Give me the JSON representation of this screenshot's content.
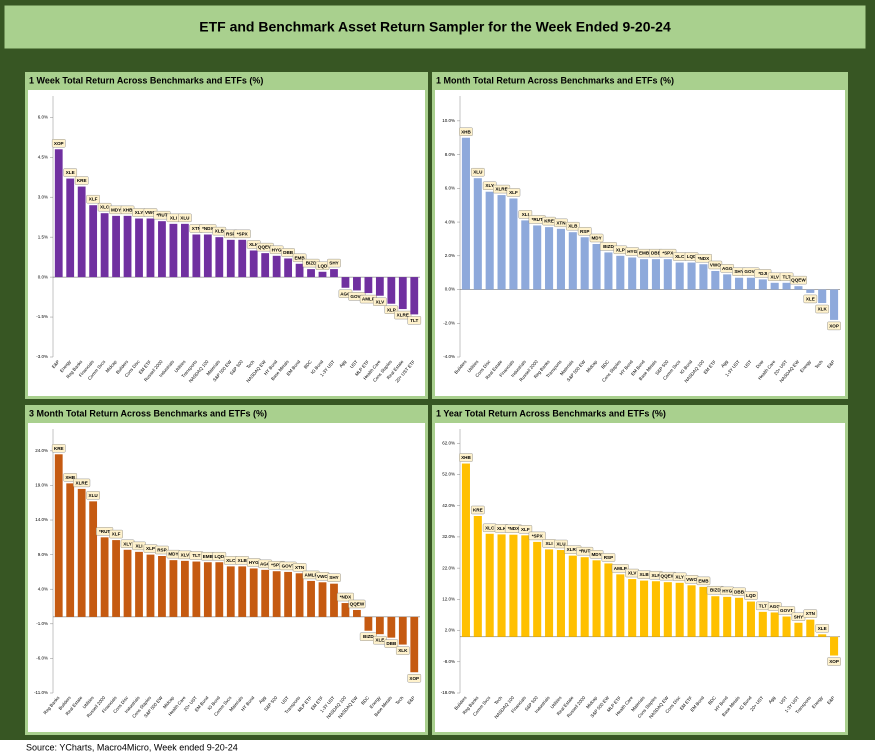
{
  "title": "ETF and Benchmark Asset Return Sampler for the Week Ended 9-20-24",
  "source": "Source: YCharts, Macro4Micro, Week ended 9-20-24",
  "chart_data": [
    {
      "type": "bar",
      "title": "1 Week Total Return Across Benchmarks and ETFs (%)",
      "color": "#7030a0",
      "ylim": [
        -3,
        6.5
      ],
      "yticks": [
        {
          "value": -3,
          "label": "-3.0%"
        },
        {
          "value": -1.5,
          "label": "-1.5%"
        },
        {
          "value": 0,
          "label": "0.0%"
        },
        {
          "value": 1.5,
          "label": "1.5%"
        },
        {
          "value": 3,
          "label": "3.0%"
        },
        {
          "value": 4.5,
          "label": "4.5%"
        },
        {
          "value": 6,
          "label": "6.0%"
        }
      ],
      "labels": [
        "XOP",
        "XLE",
        "KRE",
        "XLF",
        "XLC",
        "MDY",
        "XHB",
        "XLY",
        "VWO",
        "*RUT",
        "XLI",
        "XLU",
        "XTN",
        "*NDX",
        "XLB",
        "RSP",
        "*SPX",
        "XLK",
        "QQEW",
        "HYG",
        "DBB",
        "EMB",
        "BIZD",
        "LQD",
        "SHY",
        "AGG",
        "GOVT",
        "AMLP",
        "XLV",
        "XLP",
        "XLRE",
        "TLT"
      ],
      "categories": [
        "E&P",
        "Energy",
        "Reg Banks",
        "Financials",
        "Comm Svcs",
        "Midcap",
        "Builders",
        "Cons Disc",
        "EM ETF",
        "Russell 2000",
        "Industrials",
        "Utilities",
        "Transports",
        "NASDAQ 100",
        "Materials",
        "S&P 500 EW",
        "S&P 500",
        "Tech",
        "NASDAQ EW",
        "HY Bond",
        "Base Metals",
        "EM Bond",
        "BDC",
        "IG Bond",
        "1-3Y UST",
        "Agg",
        "UST",
        "MLP ETF",
        "Health Care",
        "Cons Staples",
        "Real Estate",
        "20+ UST ETF"
      ],
      "values": [
        4.8,
        3.7,
        3.4,
        2.7,
        2.4,
        2.3,
        2.3,
        2.2,
        2.2,
        2.1,
        2.0,
        2.0,
        1.6,
        1.6,
        1.5,
        1.4,
        1.4,
        1.0,
        0.9,
        0.8,
        0.7,
        0.5,
        0.3,
        0.2,
        0.3,
        -0.4,
        -0.5,
        -0.6,
        -0.7,
        -1.0,
        -1.2,
        -1.4
      ]
    },
    {
      "type": "bar",
      "title": "1 Month Total Return Across Benchmarks and ETFs (%)",
      "color": "#8ea9db",
      "ylim": [
        -4,
        11
      ],
      "yticks": [
        {
          "value": -4,
          "label": "-4.0%"
        },
        {
          "value": -2,
          "label": "-2.0%"
        },
        {
          "value": 0,
          "label": "0.0%"
        },
        {
          "value": 2,
          "label": "2.0%"
        },
        {
          "value": 4,
          "label": "4.0%"
        },
        {
          "value": 6,
          "label": "6.0%"
        },
        {
          "value": 8,
          "label": "8.0%"
        },
        {
          "value": 10,
          "label": "10.0%"
        }
      ],
      "labels": [
        "XHB",
        "XLU",
        "XLY",
        "XLRE",
        "XLF",
        "XLI",
        "*RUT",
        "KRE",
        "XTN",
        "XLB",
        "RSP",
        "MDY",
        "BIZD",
        "XLP",
        "HYG",
        "EMB",
        "DBB",
        "*SPX",
        "XLC",
        "LQD",
        "*NDX",
        "VWO",
        "AGG",
        "SHY",
        "GOVT",
        "*DJI",
        "XLV",
        "TLT",
        "QQEW",
        "XLE",
        "XLK",
        "XOP"
      ],
      "categories": [
        "Builders",
        "Utilities",
        "Cons Disc",
        "Real Estate",
        "Financials",
        "Industrials",
        "Russell 2000",
        "Reg Banks",
        "Transports",
        "Materials",
        "S&P 500 EW",
        "Midcap",
        "BDC",
        "Cons Staples",
        "HY Bond",
        "EM Bond",
        "Base Metals",
        "S&P 500",
        "Comm Svcs",
        "IG Bond",
        "NASDAQ 100",
        "EM ETF",
        "Agg",
        "1-3Y UST",
        "UST",
        "Dow",
        "Health Care",
        "20+ UST",
        "NASDAQ EW",
        "Energy",
        "Tech",
        "E&P"
      ],
      "values": [
        9.0,
        6.6,
        5.8,
        5.6,
        5.4,
        4.1,
        3.8,
        3.7,
        3.6,
        3.4,
        3.1,
        2.7,
        2.2,
        2.0,
        1.9,
        1.8,
        1.8,
        1.8,
        1.6,
        1.6,
        1.5,
        1.1,
        0.9,
        0.7,
        0.7,
        0.6,
        0.4,
        0.4,
        0.2,
        -0.2,
        -0.8,
        -1.8
      ]
    },
    {
      "type": "bar",
      "title": "3 Month Total Return Across Benchmarks and ETFs (%)",
      "color": "#c55a11",
      "ylim": [
        -11,
        26
      ],
      "yticks": [
        {
          "value": -11,
          "label": "-11.0%"
        },
        {
          "value": -6,
          "label": "-6.0%"
        },
        {
          "value": -1,
          "label": "-1.0%"
        },
        {
          "value": 4,
          "label": "4.0%"
        },
        {
          "value": 9,
          "label": "9.0%"
        },
        {
          "value": 14,
          "label": "14.0%"
        },
        {
          "value": 19,
          "label": "19.0%"
        },
        {
          "value": 24,
          "label": "24.0%"
        }
      ],
      "labels": [
        "KRE",
        "XHB",
        "XLRE",
        "XLU",
        "*RUT",
        "XLF",
        "XLY",
        "XLI",
        "XLP",
        "RSP",
        "MDY",
        "XLV",
        "TLT",
        "EMB",
        "LQD",
        "XLC",
        "XLB",
        "HYG",
        "AGG",
        "*SPX",
        "GOVT",
        "XTN",
        "AMLP",
        "VWO",
        "SHY",
        "*NDX",
        "QQEW",
        "BIZD",
        "XLE",
        "DBB",
        "XLK",
        "XOP"
      ],
      "categories": [
        "Reg Banks",
        "Builders",
        "Real Estate",
        "Utilities",
        "Russell 2000",
        "Financials",
        "Cons Disc",
        "Industrials",
        "Cons Staples",
        "S&P 500 EW",
        "Midcap",
        "Health Care",
        "20+ UST",
        "EM Bond",
        "IG Bond",
        "Comm Svcs",
        "Materials",
        "HY Bond",
        "Agg",
        "S&P 500",
        "UST",
        "Transports",
        "MLP ETF",
        "EM ETF",
        "1-3Y UST",
        "NASDAQ 100",
        "NASDAQ EW",
        "BDC",
        "Energy",
        "Base Metals",
        "Tech",
        "E&P"
      ],
      "values": [
        23.5,
        19.3,
        18.5,
        16.7,
        11.5,
        11.1,
        9.7,
        9.4,
        9.0,
        8.8,
        8.2,
        8.1,
        8.0,
        7.9,
        7.9,
        7.3,
        7.3,
        7.0,
        6.8,
        6.6,
        6.5,
        6.3,
        5.2,
        5.0,
        4.8,
        2.0,
        1.0,
        -2.0,
        -2.5,
        -3.0,
        -4.0,
        -8.0
      ]
    },
    {
      "type": "bar",
      "title": "1 Year Total Return Across Benchmarks and ETFs (%)",
      "color": "#ffc000",
      "ylim": [
        -18,
        64
      ],
      "yticks": [
        {
          "value": -18,
          "label": "-18.0%"
        },
        {
          "value": -8,
          "label": "-8.0%"
        },
        {
          "value": 2,
          "label": "2.0%"
        },
        {
          "value": 12,
          "label": "12.0%"
        },
        {
          "value": 22,
          "label": "22.0%"
        },
        {
          "value": 32,
          "label": "32.0%"
        },
        {
          "value": 42,
          "label": "42.0%"
        },
        {
          "value": 52,
          "label": "52.0%"
        },
        {
          "value": 62,
          "label": "62.0%"
        }
      ],
      "labels": [
        "XHB",
        "KRE",
        "XLC",
        "XLK",
        "*NDX",
        "XLF",
        "*SPX",
        "XLI",
        "XLU",
        "XLRE",
        "*RUT",
        "MDY",
        "RSP",
        "AMLP",
        "XLV",
        "XLB",
        "XLP",
        "QQEW",
        "XLY",
        "VWO",
        "EMB",
        "BIZD",
        "HYG",
        "DBB",
        "LQD",
        "TLT",
        "AGG",
        "GOVT",
        "SHY",
        "XTN",
        "XLE",
        "XOP"
      ],
      "categories": [
        "Builders",
        "Reg Banks",
        "Comm Svcs",
        "Tech",
        "NASDAQ 100",
        "Financials",
        "S&P 500",
        "Industrials",
        "Utilities",
        "Real Estate",
        "Russell 2000",
        "Midcap",
        "S&P 500 EW",
        "MLP ETF",
        "Health Care",
        "Materials",
        "Cons Staples",
        "NASDAQ EW",
        "Cons Disc",
        "EM ETF",
        "EM Bond",
        "BDC",
        "HY Bond",
        "Base Metals",
        "IG Bond",
        "20+ UST",
        "Agg",
        "UST",
        "1-3Y UST",
        "Transports",
        "Energy",
        "E&P"
      ],
      "values": [
        55.5,
        38.7,
        33.0,
        32.8,
        32.7,
        32.5,
        30.4,
        28.0,
        27.8,
        26.0,
        25.5,
        24.5,
        23.5,
        20.0,
        18.5,
        18.0,
        17.8,
        17.5,
        17.3,
        16.5,
        16.0,
        13.0,
        12.8,
        12.5,
        11.3,
        8.0,
        7.8,
        6.5,
        4.5,
        5.5,
        0.8,
        -6.0
      ]
    }
  ]
}
